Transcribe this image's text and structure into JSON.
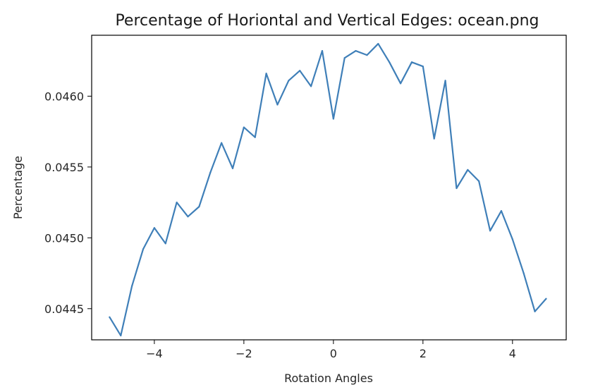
{
  "chart_data": {
    "type": "line",
    "title": "Percentage of Horiontal and Vertical Edges: ocean.png",
    "xlabel": "Rotation Angles",
    "ylabel": "Percentage",
    "xlim": [
      -5.4,
      5.2
    ],
    "ylim": [
      0.04428,
      0.04643
    ],
    "x_ticks": [
      -4,
      -2,
      0,
      2,
      4
    ],
    "x_tick_labels": [
      "−4",
      "−2",
      "0",
      "2",
      "4"
    ],
    "y_ticks": [
      0.0445,
      0.045,
      0.0455,
      0.046
    ],
    "y_tick_labels": [
      "0.0445",
      "0.0450",
      "0.0455",
      "0.0460"
    ],
    "grid": false,
    "series": [
      {
        "color": "#3f7fb8",
        "x": [
          -5.0,
          -4.75,
          -4.5,
          -4.25,
          -4.0,
          -3.75,
          -3.5,
          -3.25,
          -3.0,
          -2.75,
          -2.5,
          -2.25,
          -2.0,
          -1.75,
          -1.5,
          -1.25,
          -1.0,
          -0.75,
          -0.5,
          -0.25,
          0.0,
          0.25,
          0.5,
          0.75,
          1.0,
          1.25,
          1.5,
          1.75,
          2.0,
          2.25,
          2.5,
          2.75,
          3.0,
          3.25,
          3.5,
          3.75,
          4.0,
          4.25,
          4.5,
          4.75
        ],
        "y": [
          0.04444,
          0.04431,
          0.04466,
          0.04492,
          0.04507,
          0.04496,
          0.04525,
          0.04515,
          0.04522,
          0.04546,
          0.04567,
          0.04549,
          0.04578,
          0.04571,
          0.04616,
          0.04594,
          0.04611,
          0.04618,
          0.04607,
          0.04632,
          0.04584,
          0.04627,
          0.04632,
          0.04629,
          0.04637,
          0.04624,
          0.04609,
          0.04624,
          0.04621,
          0.0457,
          0.04611,
          0.04535,
          0.04548,
          0.0454,
          0.04505,
          0.04519,
          0.04499,
          0.04475,
          0.04448,
          0.04457
        ]
      }
    ]
  }
}
